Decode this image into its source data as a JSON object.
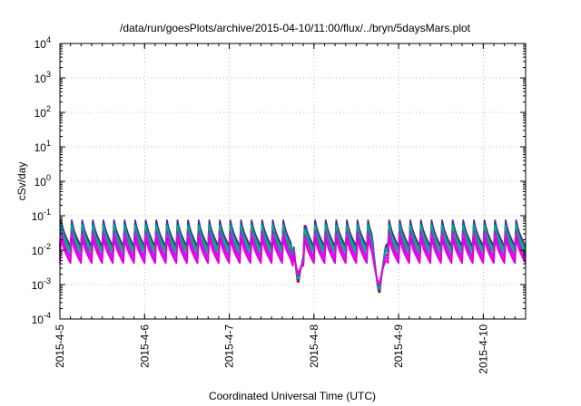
{
  "chart_data": {
    "type": "line",
    "title": "/data/run/goesPlots/archive/2015-04-10/11:00/flux/../bryn/5daysMars.plot",
    "xlabel": "Coordinated Universal Time (UTC)",
    "ylabel": "cSv/day",
    "yscale": "log",
    "ylim": [
      0.0001,
      10000
    ],
    "xlim": [
      "2015-04-05 00:00",
      "2015-04-10 12:00"
    ],
    "grid": true,
    "y_ticks": [
      {
        "base": "10",
        "exp": "-4"
      },
      {
        "base": "10",
        "exp": "-3"
      },
      {
        "base": "10",
        "exp": "-2"
      },
      {
        "base": "10",
        "exp": "-1"
      },
      {
        "base": "10",
        "exp": "0"
      },
      {
        "base": "10",
        "exp": "1"
      },
      {
        "base": "10",
        "exp": "2"
      },
      {
        "base": "10",
        "exp": "3"
      },
      {
        "base": "10",
        "exp": "4"
      }
    ],
    "x_ticks": [
      "2015-4-5",
      "2015-4-6",
      "2015-4-7",
      "2015-4-8",
      "2015-4-9",
      "2015-4-10"
    ],
    "series_colors": [
      "#cc0000",
      "#1f3fbf",
      "#00aaaa",
      "#00bb44",
      "#8a2be2",
      "#ff00ff",
      "#dd00dd"
    ],
    "pulse_period_hours": 3,
    "series": [
      {
        "color": "#cc0000",
        "peak": 0.085,
        "trough": 0.013
      },
      {
        "color": "#1f3fbf",
        "peak": 0.08,
        "trough": 0.012
      },
      {
        "color": "#00aaaa",
        "peak": 0.06,
        "trough": 0.01
      },
      {
        "color": "#00bb44",
        "peak": 0.05,
        "trough": 0.0085
      },
      {
        "color": "#8a2be2",
        "peak": 0.04,
        "trough": 0.0065
      },
      {
        "color": "#ff00ff",
        "peak": 0.032,
        "trough": 0.0052
      },
      {
        "color": "#dd00dd",
        "peak": 0.026,
        "trough": 0.0042
      }
    ],
    "dips": [
      {
        "time": "2015-04-07 19:30",
        "min": 0.0009
      },
      {
        "time": "2015-04-08 18:30",
        "min": 0.0004
      }
    ]
  }
}
